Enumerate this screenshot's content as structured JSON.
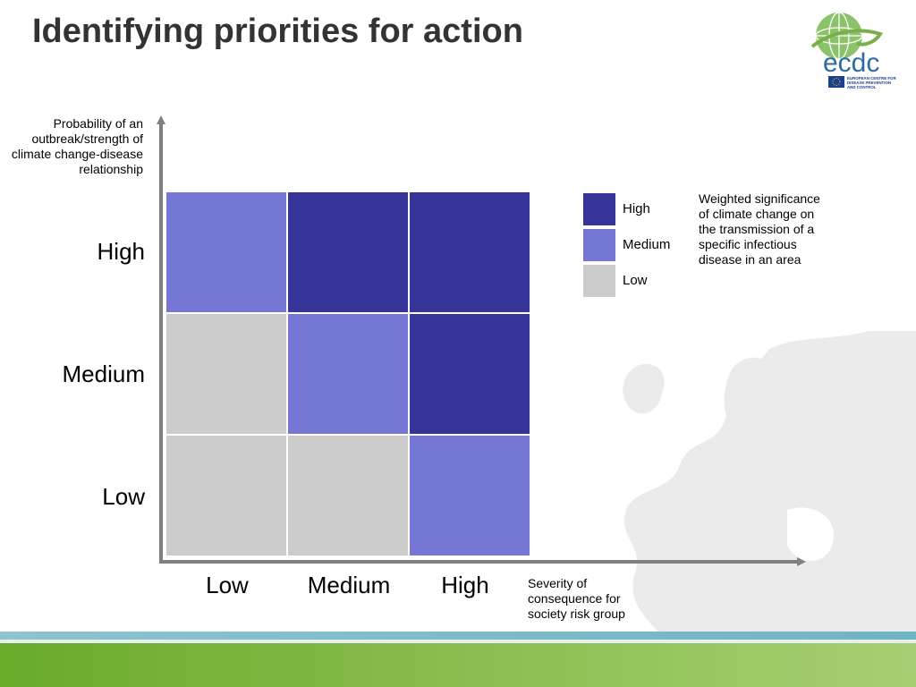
{
  "title": "Identifying priorities for action",
  "logo": {
    "text": "ecdc",
    "subtext": [
      "EUROPEAN CENTRE FOR",
      "DISEASE PREVENTION",
      "AND CONTROL"
    ]
  },
  "colors": {
    "high": "#363399",
    "medium": "#7676d4",
    "low": "#cccccc",
    "axis": "#7f7f7f",
    "title": "#333333"
  },
  "matrix": {
    "y_axis_title": "Probability of an outbreak/strength of climate change-disease relationship",
    "x_axis_title": "Severity of consequence for society risk group",
    "y_levels": [
      "High",
      "Medium",
      "Low"
    ],
    "x_levels": [
      "Low",
      "Medium",
      "High"
    ],
    "cells": [
      [
        "medium",
        "high",
        "high"
      ],
      [
        "low",
        "medium",
        "high"
      ],
      [
        "low",
        "low",
        "medium"
      ]
    ]
  },
  "legend": {
    "items": [
      {
        "key": "high",
        "label": "High"
      },
      {
        "key": "medium",
        "label": "Medium"
      },
      {
        "key": "low",
        "label": "Low"
      }
    ],
    "title": "Weighted significance of climate change on the transmission of a specific infectious disease in an area"
  }
}
